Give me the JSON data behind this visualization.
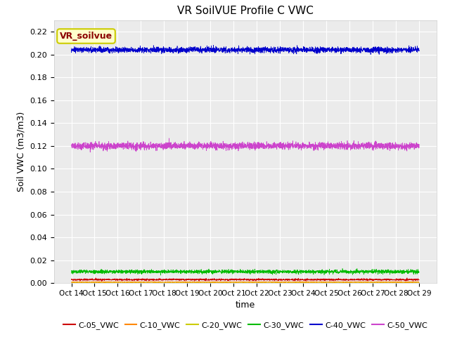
{
  "title": "VR SoilVUE Profile C VWC",
  "xlabel": "time",
  "ylabel": "Soil VWC (m3/m3)",
  "ylim": [
    0.0,
    0.23
  ],
  "yticks": [
    0.0,
    0.02,
    0.04,
    0.06,
    0.08,
    0.1,
    0.12,
    0.14,
    0.16,
    0.18,
    0.2,
    0.22
  ],
  "xtick_labels": [
    "Oct 14",
    "Oct 15",
    "Oct 16",
    "Oct 17",
    "Oct 18",
    "Oct 19",
    "Oct 20",
    "Oct 21",
    "Oct 22",
    "Oct 23",
    "Oct 24",
    "Oct 25",
    "Oct 26",
    "Oct 27",
    "Oct 28",
    "Oct 29"
  ],
  "n_points": 3000,
  "series_order": [
    "C-05_VWC",
    "C-10_VWC",
    "C-20_VWC",
    "C-30_VWC",
    "C-40_VWC",
    "C-50_VWC"
  ],
  "series": {
    "C-05_VWC": {
      "mean": 0.003,
      "std": 0.0004,
      "color": "#cc0000"
    },
    "C-10_VWC": {
      "mean": 0.0008,
      "std": 0.0002,
      "color": "#ff8800"
    },
    "C-20_VWC": {
      "mean": 0.0002,
      "std": 5e-05,
      "color": "#cccc00"
    },
    "C-30_VWC": {
      "mean": 0.01,
      "std": 0.0008,
      "color": "#00bb00"
    },
    "C-40_VWC": {
      "mean": 0.204,
      "std": 0.0012,
      "color": "#0000cc"
    },
    "C-50_VWC": {
      "mean": 0.12,
      "std": 0.0015,
      "color": "#cc44cc"
    }
  },
  "annotation_text": "VR_soilvue",
  "annotation_color": "#8B0000",
  "annotation_bg": "#ffffcc",
  "annotation_border": "#cccc00",
  "plot_bg_color": "#ebebeb",
  "grid_color": "#ffffff",
  "legend_colors": {
    "C-05_VWC": "#cc0000",
    "C-10_VWC": "#ff8800",
    "C-20_VWC": "#cccc00",
    "C-30_VWC": "#00bb00",
    "C-40_VWC": "#0000cc",
    "C-50_VWC": "#cc44cc"
  }
}
